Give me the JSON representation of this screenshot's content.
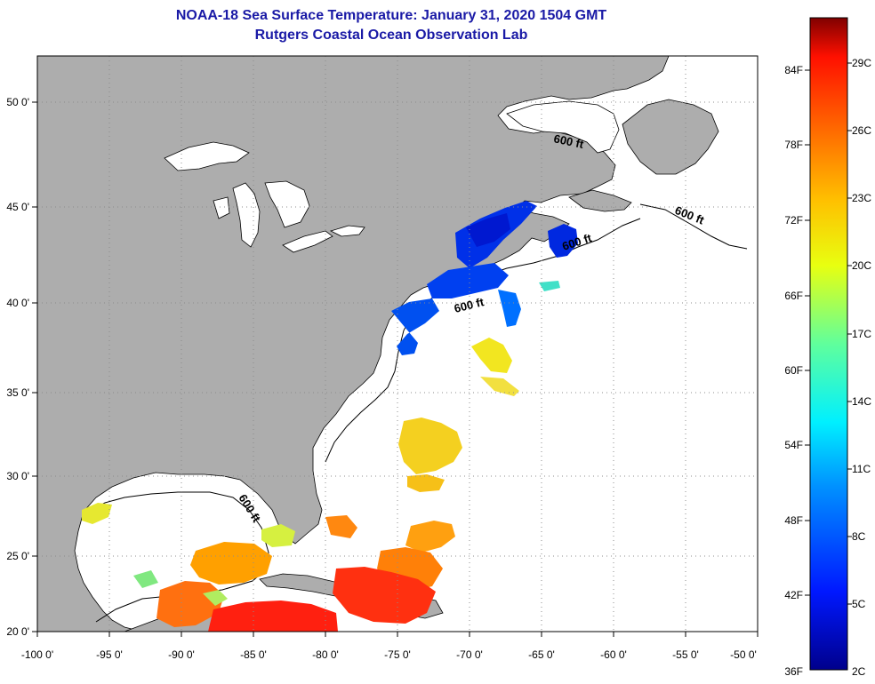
{
  "title": {
    "line1": "NOAA-18 Sea Surface Temperature:  January 31, 2020 1504 GMT",
    "line2": "Rutgers Coastal Ocean Observation Lab"
  },
  "colors": {
    "title": "#1a1aa6",
    "land": "#adadad",
    "ocean": "#ffffff",
    "grid": "#8c8c8c"
  },
  "map": {
    "lon_ticks": [
      "-100 0'",
      "-95 0'",
      "-90 0'",
      "-85 0'",
      "-80 0'",
      "-75 0'",
      "-70 0'",
      "-65 0'",
      "-60 0'",
      "-55 0'",
      "-50 0'"
    ],
    "lat_ticks": [
      "50 0'",
      "45 0'",
      "40 0'",
      "35 0'",
      "30 0'",
      "25 0'",
      "20 0'"
    ],
    "contour_labels": [
      "600 ft",
      "600 ft",
      "600 ft",
      "600 ft",
      "600 ft"
    ]
  },
  "colorbar": {
    "fahrenheit": [
      "84F",
      "78F",
      "72F",
      "66F",
      "60F",
      "54F",
      "48F",
      "42F",
      "36F"
    ],
    "celsius": [
      "29C",
      "26C",
      "23C",
      "20C",
      "17C",
      "14C",
      "11C",
      "8C",
      "5C",
      "2C"
    ]
  }
}
